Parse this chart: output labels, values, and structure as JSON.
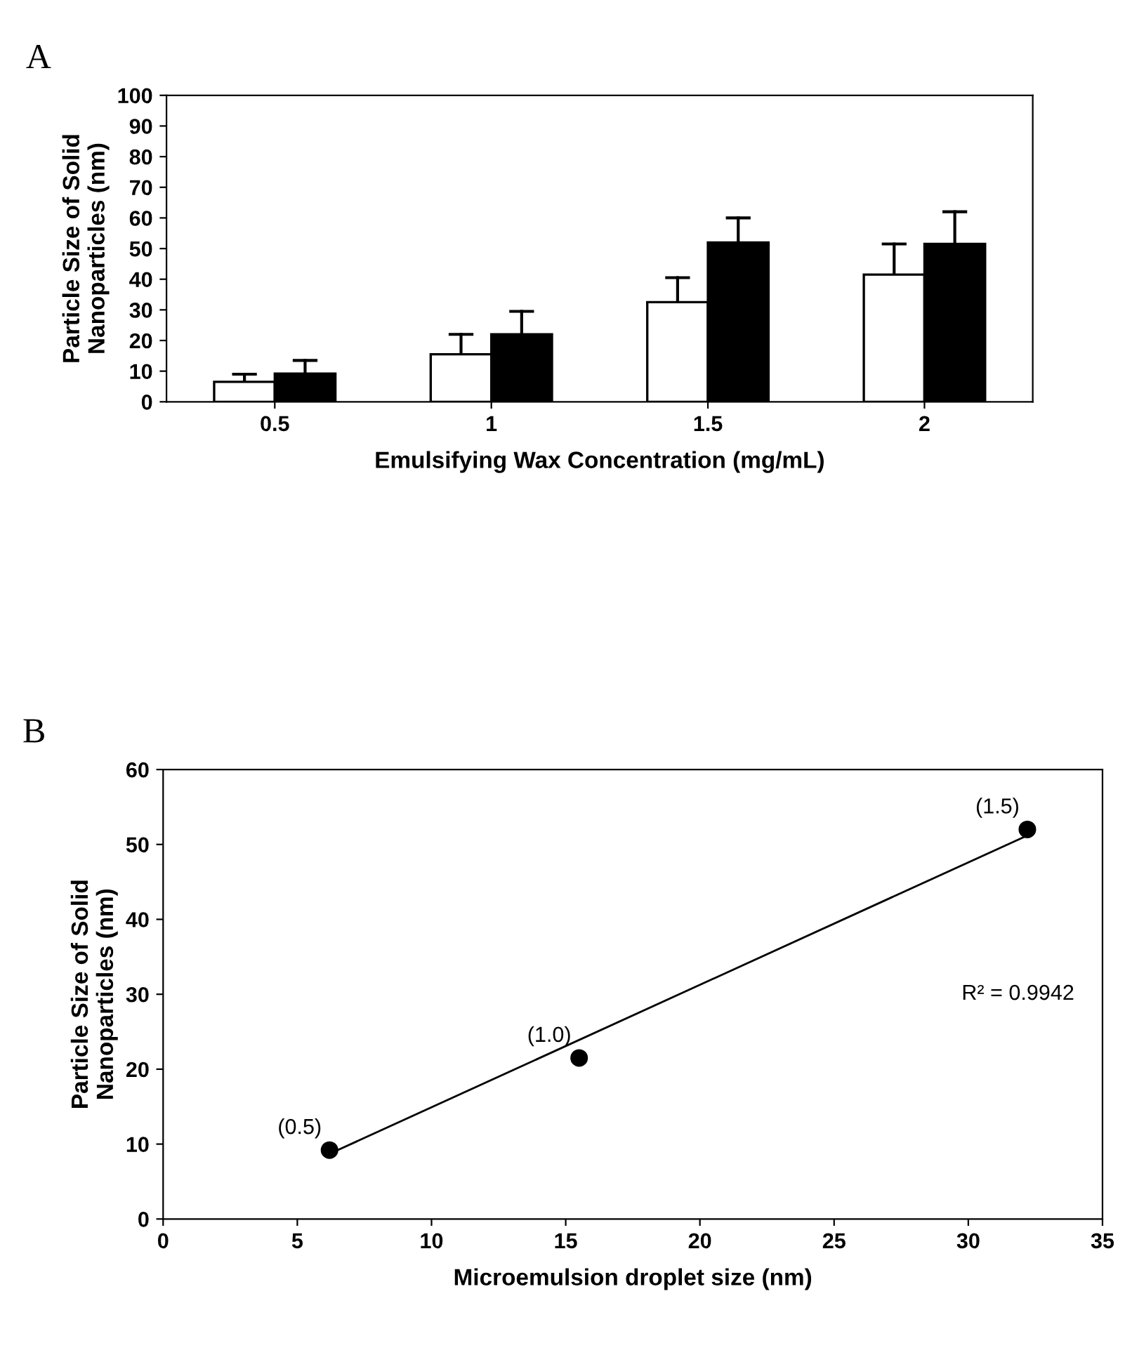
{
  "chart_data": [
    {
      "type": "bar",
      "title": "A",
      "xlabel": "Emulsifying Wax Concentration (mg/mL)",
      "ylabel": "Particle Size of Solid\nNanoparticles (nm)",
      "categories": [
        "0.5",
        "1",
        "1.5",
        "2"
      ],
      "series": [
        {
          "color": "#ffffff",
          "values": [
            6.5,
            15.5,
            32.5,
            41.5
          ],
          "errors": [
            [
              6.5,
              9
            ],
            [
              15.5,
              22
            ],
            [
              32.5,
              40.5
            ],
            [
              41.5,
              51.5
            ]
          ]
        },
        {
          "color": "#000000",
          "values": [
            9.2,
            22,
            52,
            51.5
          ],
          "errors": [
            [
              9.2,
              13.5
            ],
            [
              22,
              29.5
            ],
            [
              52,
              60
            ],
            [
              51.5,
              62
            ]
          ]
        }
      ],
      "ylim": [
        0,
        100
      ],
      "yticks": [
        0,
        10,
        20,
        30,
        40,
        50,
        60,
        70,
        80,
        90,
        100
      ],
      "grid": false,
      "legend": false
    },
    {
      "type": "scatter",
      "title": "B",
      "xlabel": "Microemulsion droplet size (nm)",
      "ylabel": "Particle Size of Solid\nNanoparticles (nm)",
      "series": [
        {
          "type": "scatter",
          "color": "#000000",
          "x": [
            6.2,
            15.5,
            32.2
          ],
          "values": [
            9.2,
            21.5,
            52
          ],
          "marker": "circle"
        },
        {
          "type": "line",
          "color": "#000000",
          "x": [
            6.2,
            32.2
          ],
          "values": [
            8.7,
            51.2
          ],
          "marker": "none",
          "line_style": "solid"
        }
      ],
      "annotations": [
        {
          "text": "(0.5)",
          "x": 6.2,
          "y": 9.2
        },
        {
          "text": "(1.0)",
          "x": 15.5,
          "y": 21.5
        },
        {
          "text": "(1.5)",
          "x": 32.2,
          "y": 52
        },
        "R² = 0.9942"
      ],
      "xlim": [
        0,
        35
      ],
      "xticks": [
        0,
        5,
        10,
        15,
        20,
        25,
        30,
        35
      ],
      "ylim": [
        0,
        60
      ],
      "yticks": [
        0,
        10,
        20,
        30,
        40,
        50,
        60
      ],
      "grid": false,
      "legend": false
    }
  ]
}
